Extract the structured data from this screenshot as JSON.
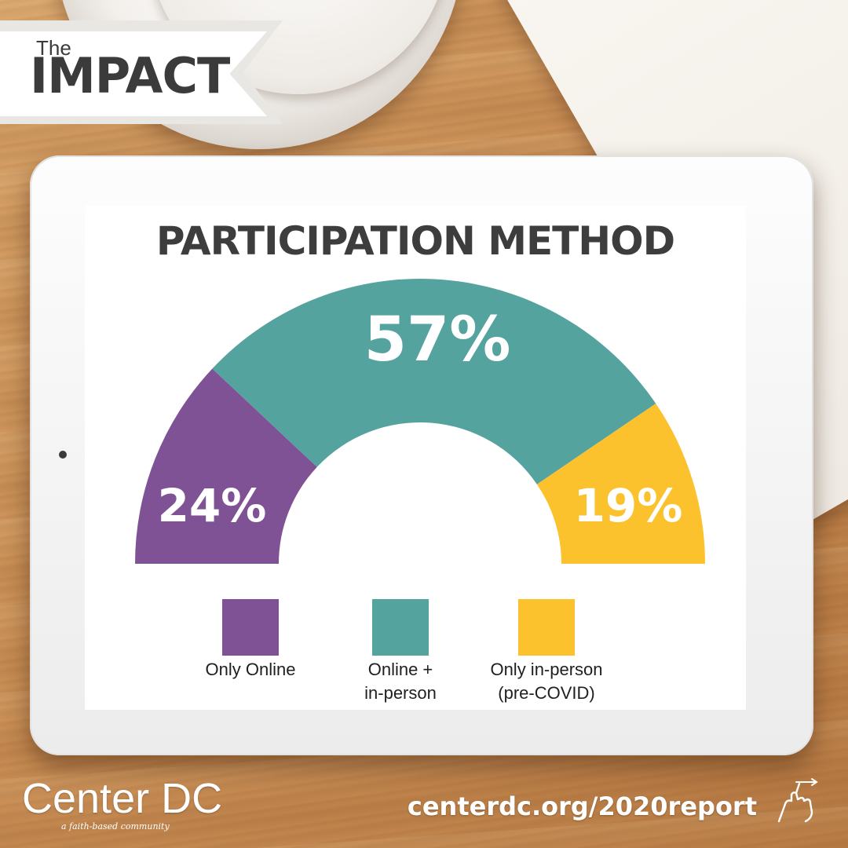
{
  "header": {
    "pre_title": "The",
    "title": "IMPACT"
  },
  "brand": {
    "name": "Center DC",
    "tagline": "a faith-based community"
  },
  "footer": {
    "url": "centerdc.org/2020report",
    "icon": "pointing-hand-icon"
  },
  "colors": {
    "only_online": "#7f5295",
    "online_in_person": "#55a39f",
    "only_in_person": "#fbc22d"
  },
  "chart_data": {
    "type": "pie",
    "variant": "half-donut",
    "title": "PARTICIPATION METHOD",
    "categories": [
      "Only Online",
      "Online +\nin-person",
      "Only in-person\n(pre-COVID)"
    ],
    "values": [
      24,
      57,
      19
    ],
    "value_labels": [
      "24%",
      "57%",
      "19%"
    ],
    "units": "%",
    "legend_position": "bottom"
  }
}
